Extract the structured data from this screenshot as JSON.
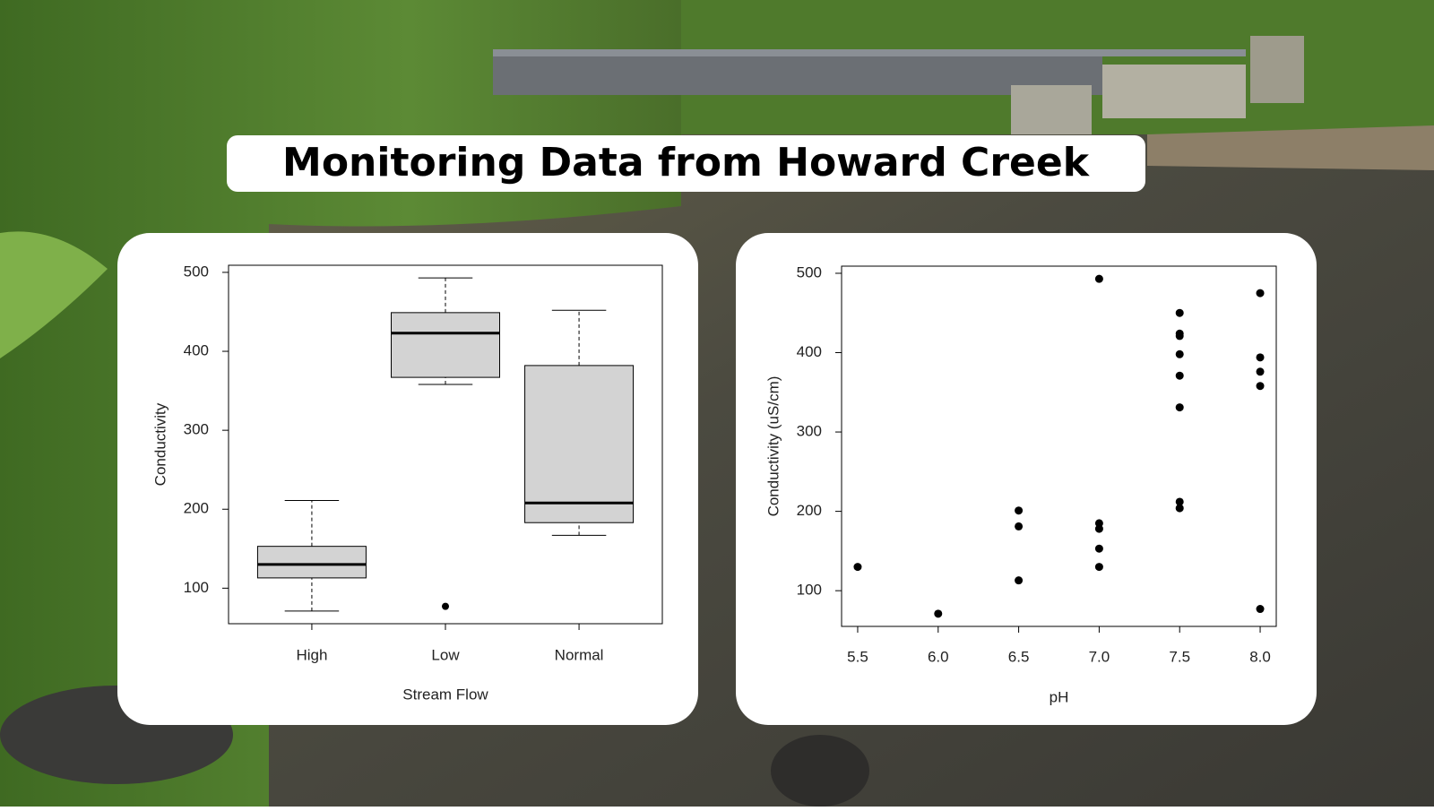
{
  "title": "Monitoring Data from Howard Creek",
  "chart_data": [
    {
      "type": "box",
      "xlabel": "Stream Flow",
      "ylabel": "Conductivity",
      "categories": [
        "High",
        "Low",
        "Normal"
      ],
      "min": [
        71,
        358,
        167
      ],
      "q1": [
        113,
        367,
        183
      ],
      "median": [
        130,
        423,
        208
      ],
      "q3": [
        153,
        449,
        382
      ],
      "max": [
        211,
        493,
        452
      ],
      "outliers": [
        [],
        [
          77
        ],
        []
      ],
      "color": "#d3d3d3",
      "ylim": [
        55,
        509
      ],
      "yticks": [
        100,
        200,
        300,
        400,
        500
      ]
    },
    {
      "type": "scatter",
      "xlabel": "pH",
      "ylabel": "Conductivity (uS/cm)",
      "x": [
        5.5,
        6.0,
        6.5,
        6.5,
        6.5,
        7.0,
        7.0,
        7.0,
        7.0,
        7.0,
        7.5,
        7.5,
        7.5,
        7.5,
        7.5,
        7.5,
        7.5,
        7.5,
        8.0,
        8.0,
        8.0,
        8.0,
        8.0
      ],
      "values": [
        130,
        71,
        201,
        181,
        113,
        493,
        185,
        178,
        153,
        130,
        450,
        424,
        421,
        398,
        371,
        331,
        212,
        204,
        475,
        394,
        376,
        358,
        77
      ],
      "color": "#000000",
      "xlim": [
        5.4,
        8.1
      ],
      "xticks": [
        5.5,
        {
          "value": 6,
          "label": "6.0"
        },
        6.5,
        {
          "value": 7,
          "label": "7.0"
        },
        7.5,
        {
          "value": 8,
          "label": "8.0"
        }
      ],
      "ylim": [
        55,
        509
      ],
      "yticks": [
        100,
        200,
        300,
        400,
        500
      ]
    }
  ]
}
